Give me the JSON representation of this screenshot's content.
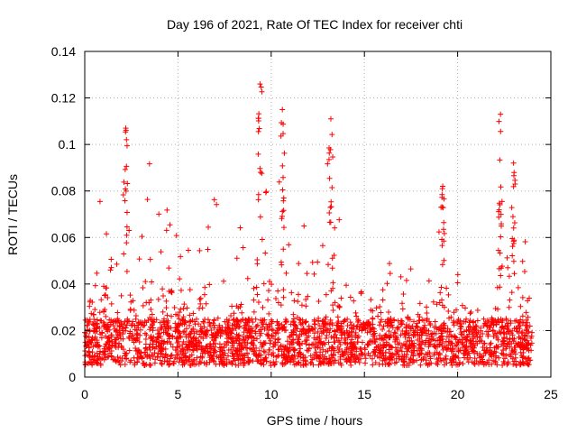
{
  "chart_data": {
    "type": "scatter",
    "title": "Day 196 of 2021, Rate Of TEC Index for receiver chti",
    "xlabel": "GPS time / hours",
    "ylabel": "ROTI / TECUs",
    "xlim": [
      0,
      25
    ],
    "ylim": [
      0,
      0.14
    ],
    "x_ticks": [
      0,
      5,
      10,
      15,
      20,
      25
    ],
    "x_tick_labels": [
      "0",
      "5",
      "10",
      "15",
      "20",
      "25"
    ],
    "y_ticks": [
      0,
      0.02,
      0.04,
      0.06,
      0.08,
      0.1,
      0.12,
      0.14
    ],
    "y_tick_labels": [
      "0",
      "0.02",
      "0.04",
      "0.06",
      "0.08",
      "0.1",
      "0.12",
      "0.14"
    ],
    "grid": true,
    "marker": "+",
    "color": "#ff0000",
    "data_span_hours": [
      0,
      24
    ],
    "series": [
      {
        "name": "ROTI",
        "baseline_range": [
          0.005,
          0.025
        ],
        "envelope": {
          "x": [
            0.0,
            0.5,
            1.0,
            1.5,
            2.0,
            2.2,
            2.5,
            3.0,
            3.5,
            4.0,
            4.5,
            5.0,
            5.5,
            6.0,
            6.5,
            7.0,
            7.5,
            8.0,
            8.5,
            9.0,
            9.4,
            10.0,
            10.6,
            11.0,
            11.5,
            12.0,
            12.5,
            13.2,
            13.8,
            14.5,
            15.0,
            15.5,
            16.0,
            16.5,
            17.0,
            17.5,
            18.0,
            18.5,
            19.0,
            19.2,
            19.6,
            20.0,
            20.5,
            21.0,
            21.5,
            22.0,
            22.3,
            22.6,
            23.0,
            23.5,
            24.0
          ],
          "y": [
            0.04,
            0.075,
            0.08,
            0.07,
            0.09,
            0.107,
            0.06,
            0.055,
            0.097,
            0.075,
            0.073,
            0.06,
            0.058,
            0.06,
            0.072,
            0.078,
            0.058,
            0.06,
            0.07,
            0.066,
            0.126,
            0.066,
            0.115,
            0.07,
            0.068,
            0.064,
            0.06,
            0.111,
            0.06,
            0.05,
            0.077,
            0.055,
            0.074,
            0.05,
            0.045,
            0.05,
            0.06,
            0.05,
            0.075,
            0.082,
            0.065,
            0.05,
            0.04,
            0.04,
            0.04,
            0.05,
            0.113,
            0.07,
            0.092,
            0.068,
            0.06
          ]
        },
        "notable_peaks": [
          {
            "x": 2.2,
            "y": 0.107
          },
          {
            "x": 9.4,
            "y": 0.126
          },
          {
            "x": 10.6,
            "y": 0.115
          },
          {
            "x": 13.2,
            "y": 0.111
          },
          {
            "x": 19.2,
            "y": 0.082
          },
          {
            "x": 22.3,
            "y": 0.113
          },
          {
            "x": 23.0,
            "y": 0.092
          }
        ]
      }
    ]
  }
}
